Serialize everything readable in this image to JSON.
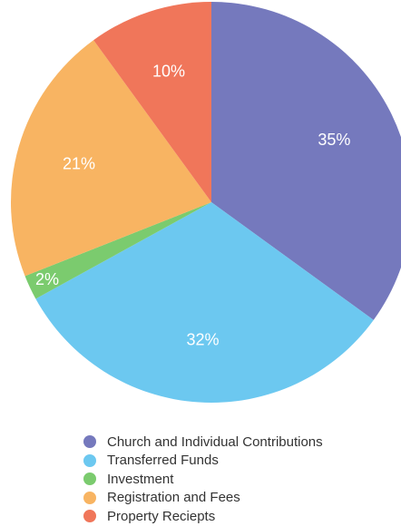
{
  "chart_data": {
    "type": "pie",
    "categories": [
      "Church and Individual Contributions",
      "Transferred Funds",
      "Investment",
      "Registration and Fees",
      "Property Reciepts"
    ],
    "values": [
      35,
      32,
      2,
      21,
      10
    ],
    "data_labels": [
      "35%",
      "32%",
      "2%",
      "21%",
      "10%"
    ],
    "colors": [
      "#7579bd",
      "#6cc8f0",
      "#7bcb6e",
      "#f8b462",
      "#f0765a"
    ],
    "legend_position": "bottom",
    "start": "12 o'clock, clockwise"
  }
}
